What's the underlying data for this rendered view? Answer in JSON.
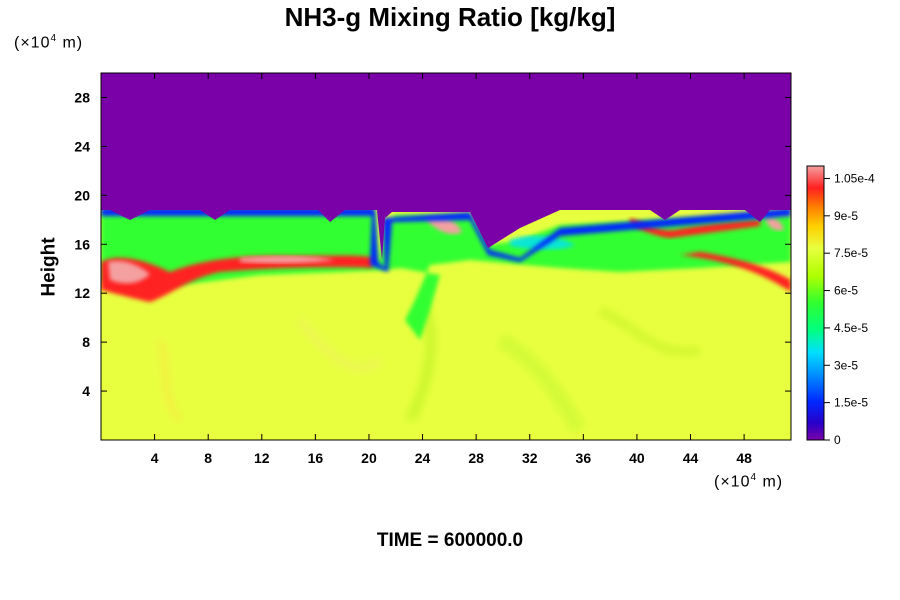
{
  "chart_data": {
    "type": "heatmap",
    "title": "NH3-g Mixing Ratio [kg/kg]",
    "xlabel": "",
    "ylabel": "Height",
    "x_unit_prefix": "(×10",
    "x_unit_exp": "4",
    "x_unit_suffix": " m)",
    "y_unit_prefix": "(×10",
    "y_unit_exp": "4",
    "y_unit_suffix": " m)",
    "xlim": [
      0,
      51.5
    ],
    "ylim": [
      0,
      30
    ],
    "x_ticks": [
      4,
      8,
      12,
      16,
      20,
      24,
      28,
      32,
      36,
      40,
      44,
      48
    ],
    "y_ticks": [
      4,
      8,
      12,
      16,
      20,
      24,
      28
    ],
    "colorbar": {
      "range": [
        0,
        0.00011
      ],
      "tick_values": [
        0,
        1.5e-05,
        3e-05,
        4.5e-05,
        6e-05,
        7.5e-05,
        9e-05,
        0.000105
      ],
      "tick_labels": [
        "0",
        "1.5e-5",
        "3e-5",
        "4.5e-5",
        "6e-5",
        "7.5e-5",
        "9e-5",
        "1.05e-4"
      ],
      "colors": [
        "#7a00a8",
        "#2a00c8",
        "#0028ff",
        "#0090ff",
        "#00e0ff",
        "#00ff80",
        "#30ff30",
        "#b0ff00",
        "#e8ff40",
        "#ffd000",
        "#ff8000",
        "#ff2020",
        "#f4a0a0"
      ]
    },
    "field_summary": {
      "background_lower": 7.75e-05,
      "upper_region_value": 0,
      "boundary_height_profile": [
        [
          0,
          18.7
        ],
        [
          20.3,
          18.7
        ],
        [
          20.6,
          15
        ],
        [
          21,
          13.5
        ],
        [
          21.5,
          18.5
        ],
        [
          27,
          18.5
        ],
        [
          29,
          14
        ],
        [
          36,
          18.6
        ],
        [
          51.5,
          18.6
        ]
      ],
      "red_layer": [
        [
          0,
          13.5
        ],
        [
          4,
          12
        ],
        [
          8,
          14
        ],
        [
          12,
          14.5
        ],
        [
          18,
          14.5
        ],
        [
          21,
          15.5
        ]
      ],
      "red_layer_right": [
        [
          34,
          15
        ],
        [
          40,
          15
        ],
        [
          44,
          14
        ],
        [
          48,
          13
        ],
        [
          51.5,
          12
        ]
      ]
    },
    "time_label": "TIME = 600000.0"
  }
}
